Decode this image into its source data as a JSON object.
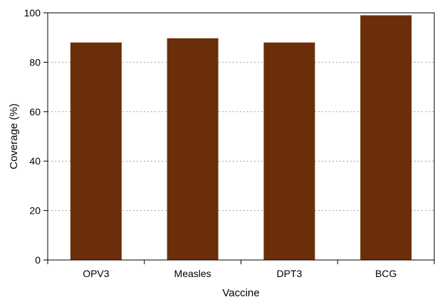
{
  "chart_data": {
    "type": "bar",
    "title": "",
    "xlabel": "Vaccine",
    "ylabel": "Coverage (%)",
    "categories": [
      "OPV3",
      "Measles",
      "DPT3",
      "BCG"
    ],
    "values": [
      88,
      89.7,
      88,
      99
    ],
    "ylim": [
      0,
      100
    ],
    "yticks": [
      0,
      20,
      40,
      60,
      80,
      100
    ],
    "grid": true,
    "legend": "none",
    "bar_color": "#6b2e0a"
  }
}
